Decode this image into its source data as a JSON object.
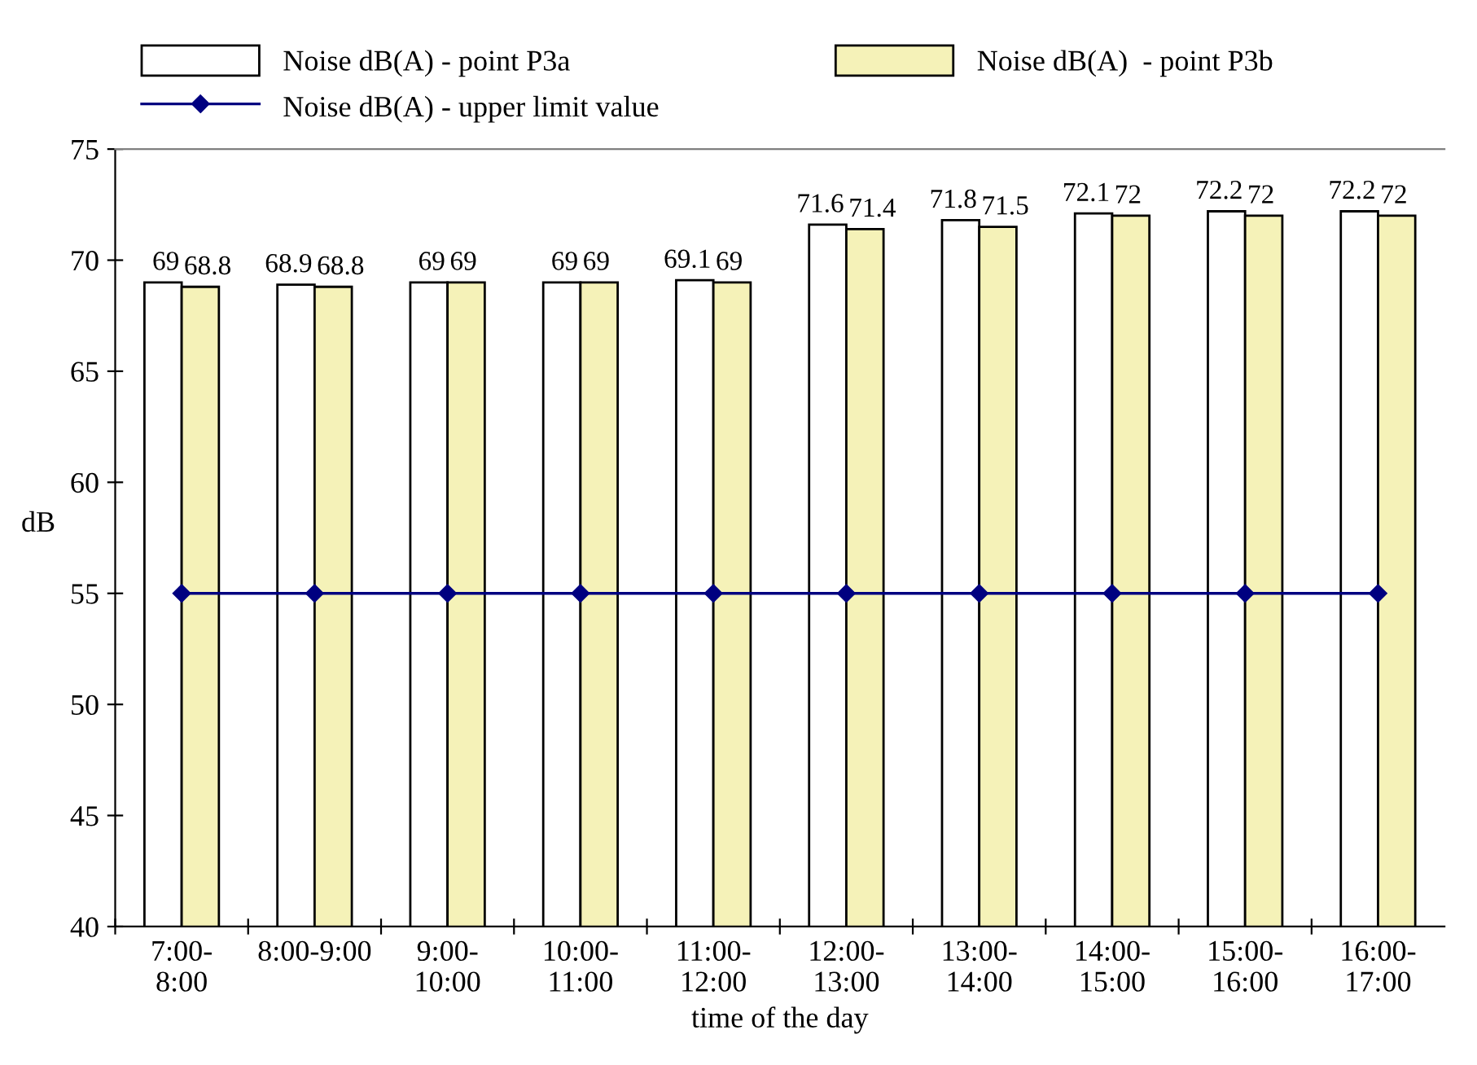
{
  "chart_data": {
    "type": "bar",
    "ylabel": "dB",
    "xlabel": "time of the day",
    "categories": [
      "7:00-\n8:00",
      "8:00-9:00",
      "9:00-\n10:00",
      "10:00-\n11:00",
      "11:00-\n12:00",
      "12:00-\n13:00",
      "13:00-\n14:00",
      "14:00-\n15:00",
      "15:00-\n16:00",
      "16:00-\n17:00"
    ],
    "series": [
      {
        "name": "Noise dB(A) - point P3a",
        "color": "#ffffff",
        "values": [
          69,
          68.9,
          69,
          69,
          69.1,
          71.6,
          71.8,
          72.1,
          72.2,
          72.2
        ],
        "value_labels": [
          "69",
          "68.9",
          "69",
          "69",
          "69.1",
          "71.6",
          "71.8",
          "72.1",
          "72.2",
          "72.2"
        ]
      },
      {
        "name": "Noise dB(A)  - point P3b",
        "color": "#f5f2b8",
        "values": [
          68.8,
          68.8,
          69,
          69,
          69,
          71.4,
          71.5,
          72,
          72,
          72
        ],
        "value_labels": [
          "68.8",
          "68.8",
          "69",
          "69",
          "69",
          "71.4",
          "71.5",
          "72",
          "72",
          "72"
        ]
      },
      {
        "name": "Noise dB(A) - upper limit value",
        "type": "line",
        "color": "#000080",
        "marker": "diamond",
        "values": [
          55,
          55,
          55,
          55,
          55,
          55,
          55,
          55,
          55,
          55
        ]
      }
    ],
    "ylim": [
      40,
      75
    ],
    "yticks": [
      40,
      45,
      50,
      55,
      60,
      65,
      70,
      75
    ],
    "legend": "top",
    "grid": false
  }
}
